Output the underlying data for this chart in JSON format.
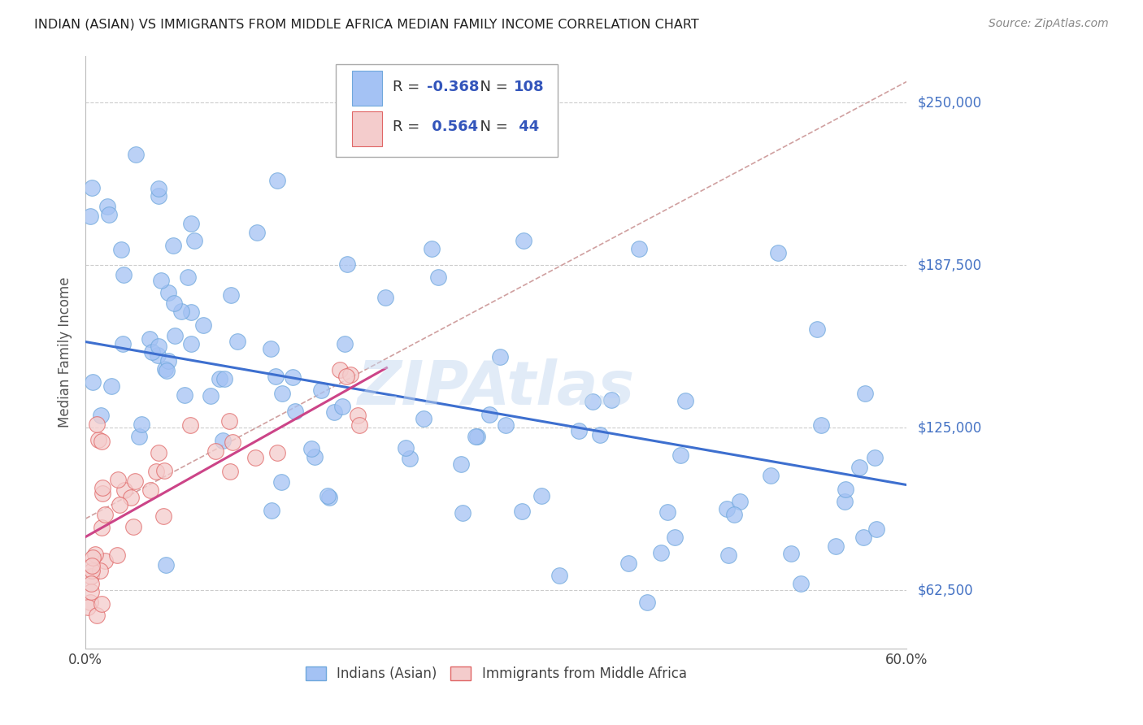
{
  "title": "INDIAN (ASIAN) VS IMMIGRANTS FROM MIDDLE AFRICA MEDIAN FAMILY INCOME CORRELATION CHART",
  "source": "Source: ZipAtlas.com",
  "ylabel": "Median Family Income",
  "y_ticks": [
    62500,
    125000,
    187500,
    250000
  ],
  "y_tick_labels": [
    "$62,500",
    "$125,000",
    "$187,500",
    "$250,000"
  ],
  "x_min": 0.0,
  "x_max": 0.6,
  "y_min": 40000,
  "y_max": 268000,
  "blue_R": -0.368,
  "blue_N": 108,
  "pink_R": 0.564,
  "pink_N": 44,
  "blue_color": "#a4c2f4",
  "blue_edge_color": "#6fa8dc",
  "blue_line_color": "#3d6fcf",
  "pink_color": "#f4cccc",
  "pink_edge_color": "#e06666",
  "pink_line_color": "#cc4488",
  "ref_line_color": "#d0a0a0",
  "watermark": "ZIPAtlas",
  "watermark_color": "#c5d8f0",
  "legend_label_blue": "Indians (Asian)",
  "legend_label_pink": "Immigrants from Middle Africa",
  "blue_line_x0": 0.0,
  "blue_line_y0": 158000,
  "blue_line_x1": 0.6,
  "blue_line_y1": 103000,
  "pink_line_x0": 0.0,
  "pink_line_y0": 83000,
  "pink_line_x1": 0.22,
  "pink_line_y1": 148000,
  "ref_line_x0": 0.0,
  "ref_line_y0": 90000,
  "ref_line_x1": 0.6,
  "ref_line_y1": 258000
}
